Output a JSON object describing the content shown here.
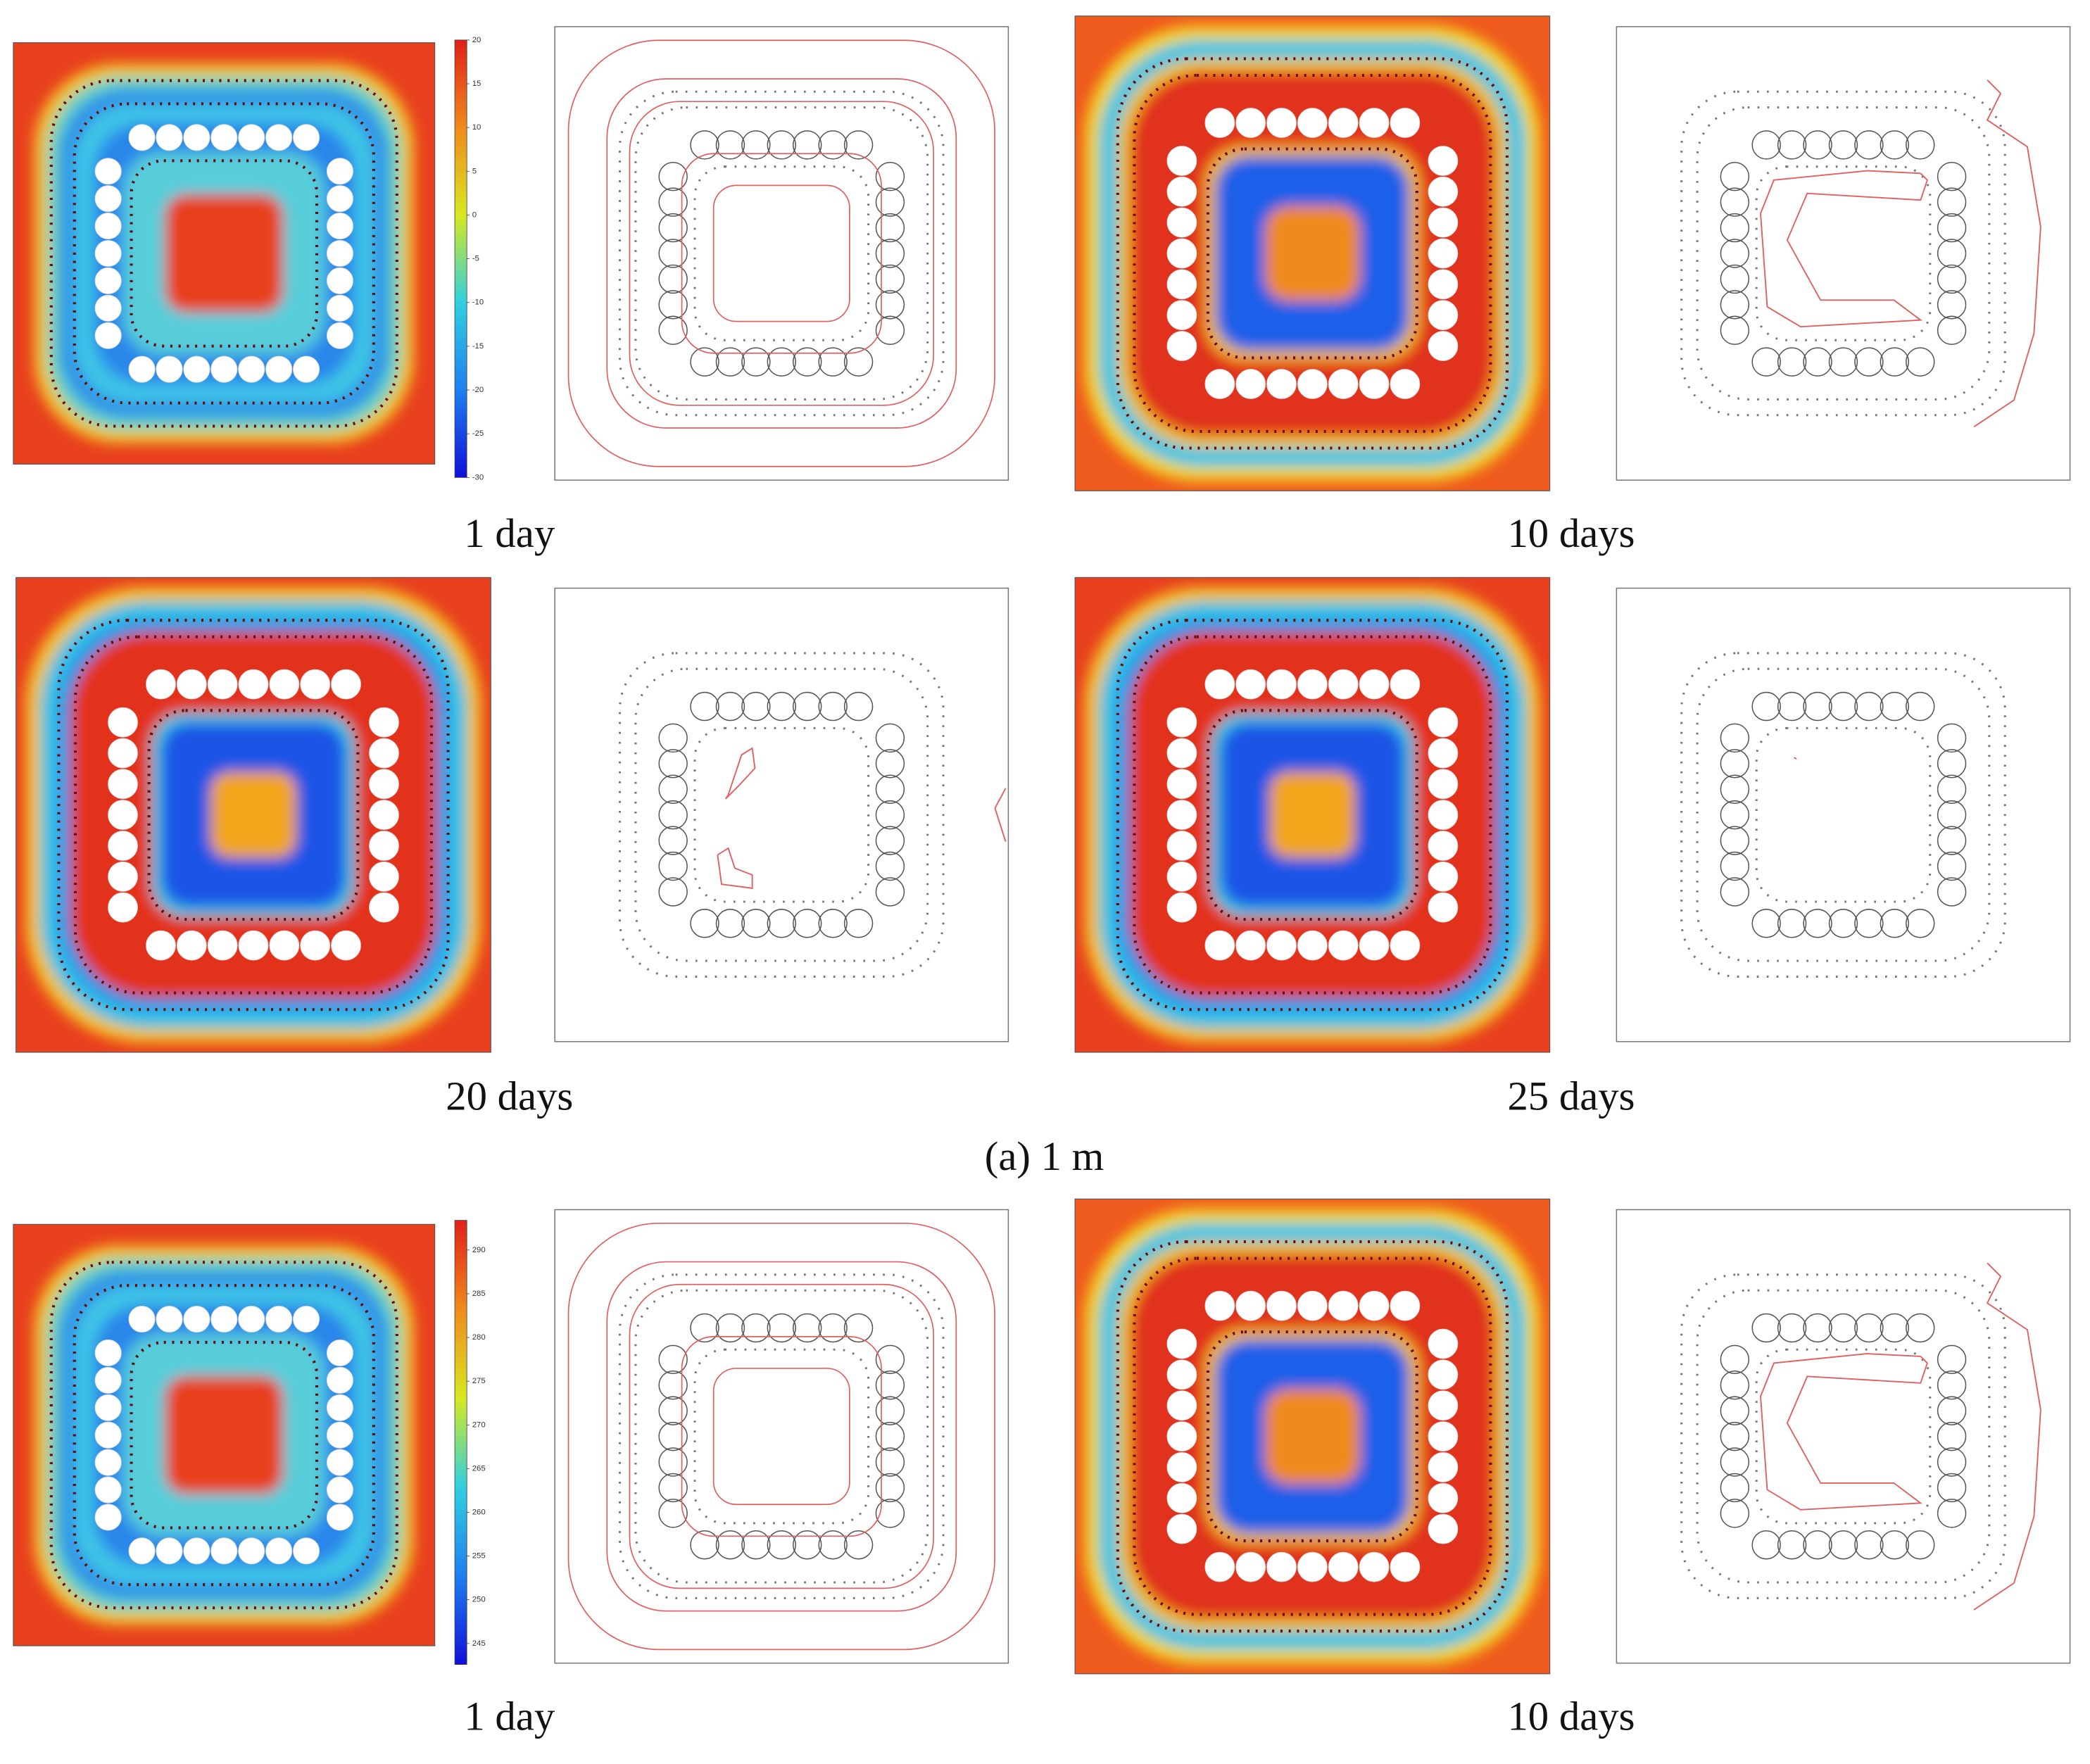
{
  "panels": [
    {
      "caption": "1 day"
    },
    {
      "caption": "10 days"
    },
    {
      "caption": "20 days"
    },
    {
      "caption": "25 days"
    },
    {
      "caption": "1 day"
    },
    {
      "caption": "10 days"
    }
  ],
  "group_label": "(a) 1 m",
  "colorbars": [
    {
      "lim": [
        -30,
        20
      ],
      "ticks": [
        20,
        15,
        10,
        5,
        0,
        -5,
        -10,
        -15,
        -20,
        -25,
        -30
      ]
    },
    {
      "lim": [
        242.6,
        293.4
      ],
      "ticks": [
        290,
        285,
        280,
        275,
        270,
        265,
        260,
        255,
        250,
        245
      ]
    }
  ]
}
